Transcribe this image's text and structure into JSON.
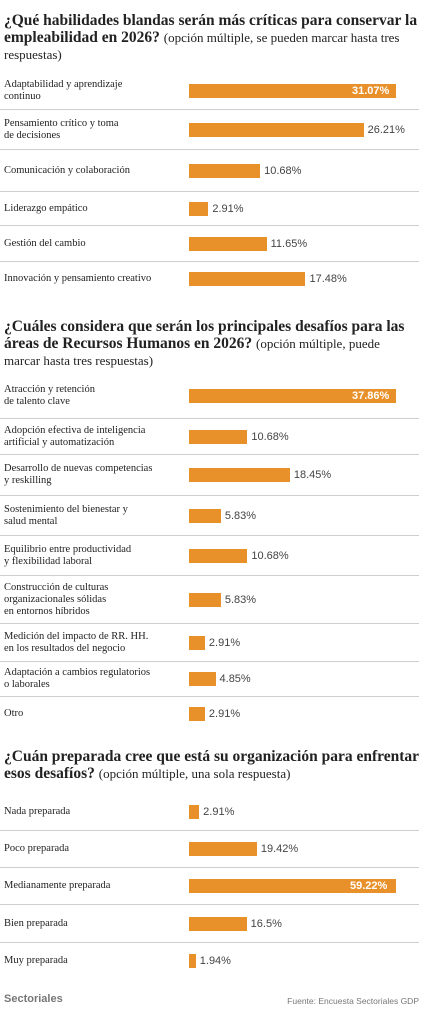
{
  "chart_data": [
    {
      "type": "bar",
      "orientation": "horizontal",
      "title": "¿Qué habilidades blandas serán más críticas para conservar la empleabilidad en 2026?",
      "subtitle": "(opción múltiple, se pueden marcar hasta tres respuestas)",
      "categories": [
        "Adaptabilidad y aprendizaje\ncontinuo",
        "Pensamiento crítico y toma\nde decisiones",
        "Comunicación y colaboración",
        "Liderazgo empático",
        "Gestión del cambio",
        "Innovación y pensamiento creativo"
      ],
      "values": [
        31.07,
        26.21,
        10.68,
        2.91,
        11.65,
        17.48
      ],
      "value_labels": [
        "31.07%",
        "26.21%",
        "10.68%",
        "2.91%",
        "11.65%",
        "17.48%"
      ],
      "highlight_index": 0,
      "xlim": [
        0,
        40
      ],
      "color": "#e8912b"
    },
    {
      "type": "bar",
      "orientation": "horizontal",
      "title": "¿Cuáles considera que serán los principales desafíos para las áreas de Recursos Humanos en 2026?",
      "subtitle": "(opción múltiple, puede marcar hasta tres respuestas)",
      "categories": [
        "Atracción y retención\nde talento clave",
        "Adopción efectiva de inteligencia\nartificial y automatización",
        "Desarrollo de nuevas competencias\ny reskilling",
        "Sostenimiento del bienestar y\nsalud mental",
        "Equilibrio entre productividad\ny flexibilidad laboral",
        "Construcción de culturas\norganizacionales sólidas\nen entornos híbridos",
        "Medición del impacto de RR. HH.\nen los resultados del negocio",
        "Adaptación a cambios regulatorios\no laborales",
        "Otro"
      ],
      "values": [
        37.86,
        10.68,
        18.45,
        5.83,
        10.68,
        5.83,
        2.91,
        4.85,
        2.91
      ],
      "value_labels": [
        "37.86%",
        "10.68%",
        "18.45%",
        "5.83%",
        "10.68%",
        "5.83%",
        "2.91%",
        "4.85%",
        "2.91%"
      ],
      "highlight_index": 0,
      "xlim": [
        0,
        40
      ],
      "color": "#e8912b"
    },
    {
      "type": "bar",
      "orientation": "horizontal",
      "title": "¿Cuán preparada cree que está su organización para enfrentar esos desafíos?",
      "subtitle": "(opción múltiple, una sola respuesta)",
      "categories": [
        "Nada preparada",
        "Poco preparada",
        "Medianamente preparada",
        "Bien preparada",
        "Muy preparada"
      ],
      "values": [
        2.91,
        19.42,
        59.22,
        16.5,
        1.94
      ],
      "value_labels": [
        "2.91%",
        "19.42%",
        "59.22%",
        "16.5%",
        "1.94%"
      ],
      "highlight_index": 2,
      "xlim": [
        0,
        60
      ],
      "color": "#e8912b"
    }
  ],
  "footer": {
    "brand": "Sectoriales",
    "source": "Fuente: Encuesta Sectoriales GDP"
  }
}
